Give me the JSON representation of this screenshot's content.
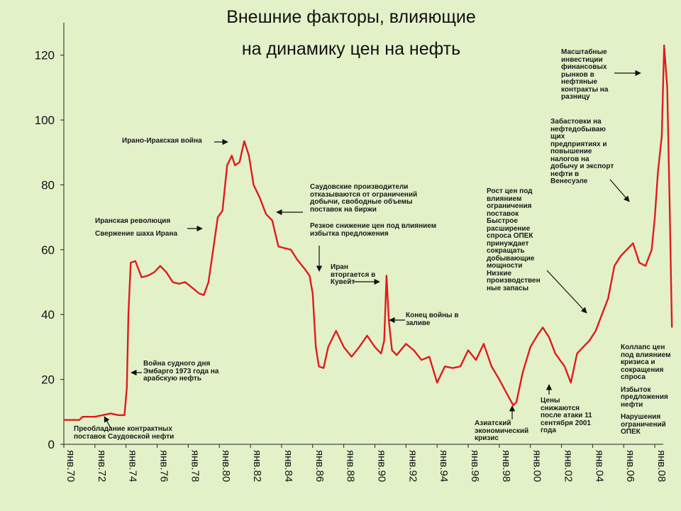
{
  "page": {
    "title_line1": "Внешние факторы, влияющие",
    "title_line2": "на динамику цен на нефть"
  },
  "colors": {
    "background": "#e3f1c9",
    "line": "#e01b1b",
    "text": "#1a1a1a"
  },
  "annotations": {
    "contract_supply": "Преобладание контрактных поставок Саудовской нефти",
    "yom_kippur": "Война судного дня Эмбарго 1973 года на арабскую нефть",
    "iran_revolution_1": "Иранская революция",
    "iran_revolution_2": "Свержение шаха Ирана",
    "iran_iraq_war": "Ирано-Иракская война",
    "saudi_producers": "Саудовские производители отказываются от ограничений добычи, свободные объемы поставок на биржи",
    "sharp_decline": "Резкое снижение цен под влиянием избытка предложения",
    "iraq_kuwait": "Иран вторгается в Кувейт",
    "gulf_war_end": "Конец войны в заливе",
    "asian_crisis": "Азиатский экономический кризис",
    "after_911": "Цены снижаются после атаки 11 сентября 2001 года",
    "price_growth": "Рост цен под влиянием ограничения поставок Быстрое расширение спроса ОПЕК принуждает сокращать добывающие мощности Низкие производствен ные запасы",
    "venezuela": "Забастовки на нефтедобываю щих предприятиях и повышение налогов на добычу и экспорт нефти в Венесуэле",
    "financial_investments": "Масштабные инвестиции финансовых рынков в нефтяные контракты на разницу",
    "collapse_1": "Коллапс цен под влиянием кризиса и сокращения спроса",
    "collapse_2": "Избыток предложения нефти",
    "collapse_3": "Нарушения ограничений ОПЕК"
  },
  "chart_data": {
    "type": "line",
    "title": "Внешние факторы, влияющие на динамику цен на нефть",
    "xlabel": "",
    "ylabel": "",
    "x_ticks": [
      "янв.70",
      "янв.72",
      "янв.74",
      "янв.76",
      "янв.78",
      "янв.80",
      "янв.82",
      "янв.84",
      "янв.86",
      "янв.88",
      "янв.90",
      "янв.92",
      "янв.94",
      "янв.96",
      "янв.98",
      "янв.00",
      "янв.02",
      "янв.04",
      "янв.06",
      "янв.08"
    ],
    "y_ticks": [
      0,
      20,
      40,
      60,
      80,
      100,
      120
    ],
    "xlim": [
      1970,
      2009
    ],
    "ylim": [
      0,
      130
    ],
    "grid": false,
    "legend": "none",
    "series": [
      {
        "x": [
          1970.0,
          1971.0,
          1971.2,
          1972.0,
          1972.5,
          1973.0,
          1973.5,
          1973.9,
          1974.05,
          1974.15,
          1974.3,
          1974.6,
          1975.0,
          1975.4,
          1975.8,
          1976.2,
          1976.6,
          1977.0,
          1977.4,
          1977.8,
          1978.2,
          1978.7,
          1979.0,
          1979.3,
          1979.6,
          1979.9,
          1980.2,
          1980.5,
          1980.8,
          1981.0,
          1981.3,
          1981.6,
          1981.9,
          1982.2,
          1982.6,
          1983.0,
          1983.4,
          1983.8,
          1984.2,
          1984.6,
          1985.0,
          1985.5,
          1985.8,
          1986.0,
          1986.2,
          1986.4,
          1986.7,
          1987.0,
          1987.5,
          1988.0,
          1988.5,
          1989.0,
          1989.5,
          1990.0,
          1990.4,
          1990.6,
          1990.75,
          1990.9,
          1991.1,
          1991.4,
          1992.0,
          1992.5,
          1993.0,
          1993.5,
          1994.0,
          1994.5,
          1995.0,
          1995.5,
          1996.0,
          1996.5,
          1997.0,
          1997.5,
          1998.0,
          1998.5,
          1998.9,
          1999.1,
          1999.5,
          2000.0,
          2000.5,
          2000.8,
          2001.2,
          2001.6,
          2001.9,
          2002.2,
          2002.6,
          2003.0,
          2003.4,
          2003.8,
          2004.2,
          2004.6,
          2005.0,
          2005.4,
          2005.8,
          2006.2,
          2006.6,
          2007.0,
          2007.4,
          2007.8,
          2008.0,
          2008.2,
          2008.45,
          2008.6,
          2008.8,
          2008.95,
          2009.1
        ],
        "y": [
          7.5,
          7.5,
          8.5,
          8.5,
          9.0,
          9.5,
          9.0,
          9.0,
          17.5,
          40.0,
          56.0,
          56.5,
          51.5,
          52.0,
          53.0,
          55.0,
          53.0,
          50.0,
          49.5,
          50.0,
          48.5,
          46.5,
          46.0,
          50.0,
          60.0,
          70.0,
          72.0,
          86.0,
          89.0,
          86.0,
          87.0,
          93.5,
          89.0,
          80.0,
          76.0,
          71.0,
          69.0,
          61.0,
          60.5,
          60.0,
          57.0,
          54.0,
          52.0,
          46.5,
          30.0,
          24.0,
          23.5,
          30.0,
          35.0,
          30.0,
          27.0,
          30.0,
          33.5,
          30.0,
          28.0,
          32.0,
          52.0,
          38.0,
          29.0,
          27.5,
          31.0,
          29.0,
          26.0,
          27.0,
          19.0,
          24.0,
          23.5,
          24.0,
          29.0,
          26.0,
          31.0,
          24.0,
          20.0,
          15.5,
          12.0,
          13.0,
          22.0,
          30.0,
          34.0,
          36.0,
          33.0,
          28.0,
          26.0,
          24.0,
          19.0,
          28.0,
          30.0,
          32.0,
          35.0,
          40.0,
          45.0,
          55.0,
          58.0,
          60.0,
          62.0,
          56.0,
          55.0,
          60.0,
          70.0,
          84.0,
          95.0,
          123.0,
          110.0,
          75.0,
          36.0
        ]
      }
    ]
  }
}
